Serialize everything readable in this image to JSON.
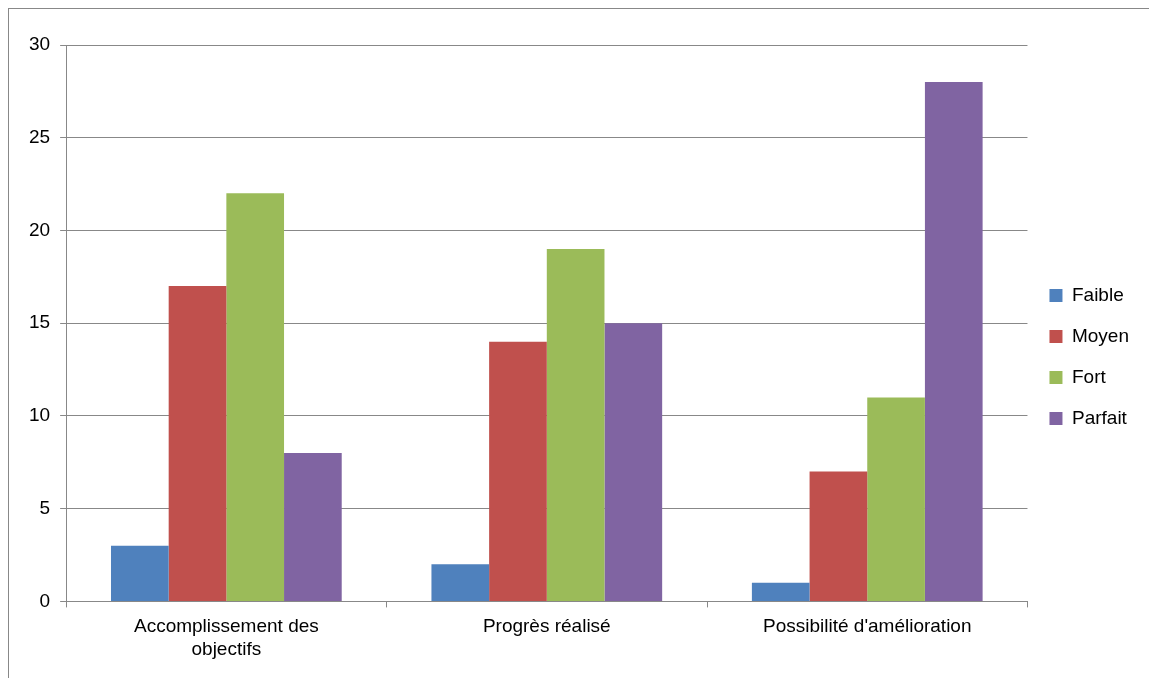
{
  "chart_data": {
    "type": "bar",
    "categories": [
      "Accomplissement des objectifs",
      "Progrès réalisé",
      "Possibilité d'amélioration"
    ],
    "series": [
      {
        "name": "Faible",
        "color": "#4f81bd",
        "values": [
          3,
          2,
          1
        ]
      },
      {
        "name": "Moyen",
        "color": "#c0504d",
        "values": [
          17,
          14,
          7
        ]
      },
      {
        "name": "Fort",
        "color": "#9bbb59",
        "values": [
          22,
          19,
          11
        ]
      },
      {
        "name": "Parfait",
        "color": "#8064a2",
        "values": [
          8,
          15,
          28
        ]
      }
    ],
    "ylim": [
      0,
      30
    ],
    "yticks": [
      0,
      5,
      10,
      15,
      20,
      25,
      30
    ],
    "grid": "y",
    "legend": "right"
  }
}
